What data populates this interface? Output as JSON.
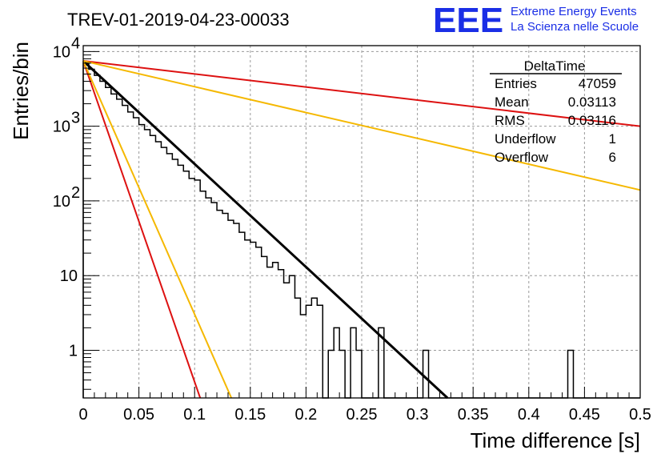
{
  "title": "TREV-01-2019-04-23-00033",
  "logo": {
    "mark": "EEE",
    "line1": "Extreme Energy Events",
    "line2": "La Scienza nelle Scuole",
    "color": "#1a2ee6"
  },
  "stats": {
    "name": "DeltaTime",
    "rows": [
      {
        "label": "Entries",
        "value": "47059"
      },
      {
        "label": "Mean",
        "value": "0.03113"
      },
      {
        "label": "RMS",
        "value": "0.03116"
      },
      {
        "label": "Underflow",
        "value": "1"
      },
      {
        "label": "Overflow",
        "value": "6"
      }
    ]
  },
  "chart_data": {
    "type": "line",
    "xlabel": "Time difference [s]",
    "ylabel": "Entries/bin",
    "xlim": [
      0,
      0.5
    ],
    "ylim": [
      0.23,
      12000
    ],
    "yscale": "log",
    "grid": true,
    "xticks": [
      "0",
      "0.05",
      "0.1",
      "0.15",
      "0.2",
      "0.25",
      "0.3",
      "0.35",
      "0.4",
      "0.45",
      "0.5"
    ],
    "yticks": [
      {
        "value": 1,
        "label": "1"
      },
      {
        "value": 10,
        "label": "10"
      },
      {
        "value": 100,
        "label": "10",
        "exp": "2"
      },
      {
        "value": 1000,
        "label": "10",
        "exp": "3"
      },
      {
        "value": 10000,
        "label": "10",
        "exp": "4"
      }
    ],
    "histogram": {
      "bin_width": 0.005,
      "color": "#000000",
      "counts": [
        7000,
        5800,
        4800,
        4000,
        3300,
        2700,
        2300,
        1900,
        1550,
        1300,
        1050,
        900,
        750,
        620,
        520,
        430,
        360,
        300,
        250,
        200,
        190,
        135,
        110,
        95,
        75,
        68,
        55,
        50,
        38,
        30,
        28,
        24,
        18,
        13,
        15,
        12,
        8,
        10,
        5,
        3,
        4,
        5,
        4,
        0,
        1,
        2,
        1,
        0,
        2,
        1,
        0,
        0,
        0,
        2,
        0,
        0,
        0,
        0,
        0,
        0,
        0,
        1,
        0,
        0,
        0,
        0,
        0,
        0,
        0,
        0,
        0,
        0,
        0,
        0,
        0,
        0,
        0,
        0,
        0,
        0,
        0,
        0,
        0,
        0,
        0,
        0,
        0,
        1,
        0,
        0,
        0,
        0,
        0,
        0,
        0,
        0,
        0,
        0,
        0,
        0
      ]
    },
    "curves": [
      {
        "color": "#000000",
        "points": [
          [
            0,
            7500
          ],
          [
            0.327,
            0.23
          ]
        ],
        "width": 3
      },
      {
        "color": "#dd1111",
        "points": [
          [
            0,
            7500
          ],
          [
            0.5,
            1000
          ]
        ],
        "width": 2
      },
      {
        "color": "#f5b800",
        "points": [
          [
            0,
            7500
          ],
          [
            0.5,
            140
          ]
        ],
        "width": 2
      },
      {
        "color": "#dd1111",
        "points": [
          [
            0,
            7500
          ],
          [
            0.105,
            0.23
          ]
        ],
        "width": 2
      },
      {
        "color": "#f5b800",
        "points": [
          [
            0,
            7500
          ],
          [
            0.133,
            0.23
          ]
        ],
        "width": 2
      }
    ]
  }
}
